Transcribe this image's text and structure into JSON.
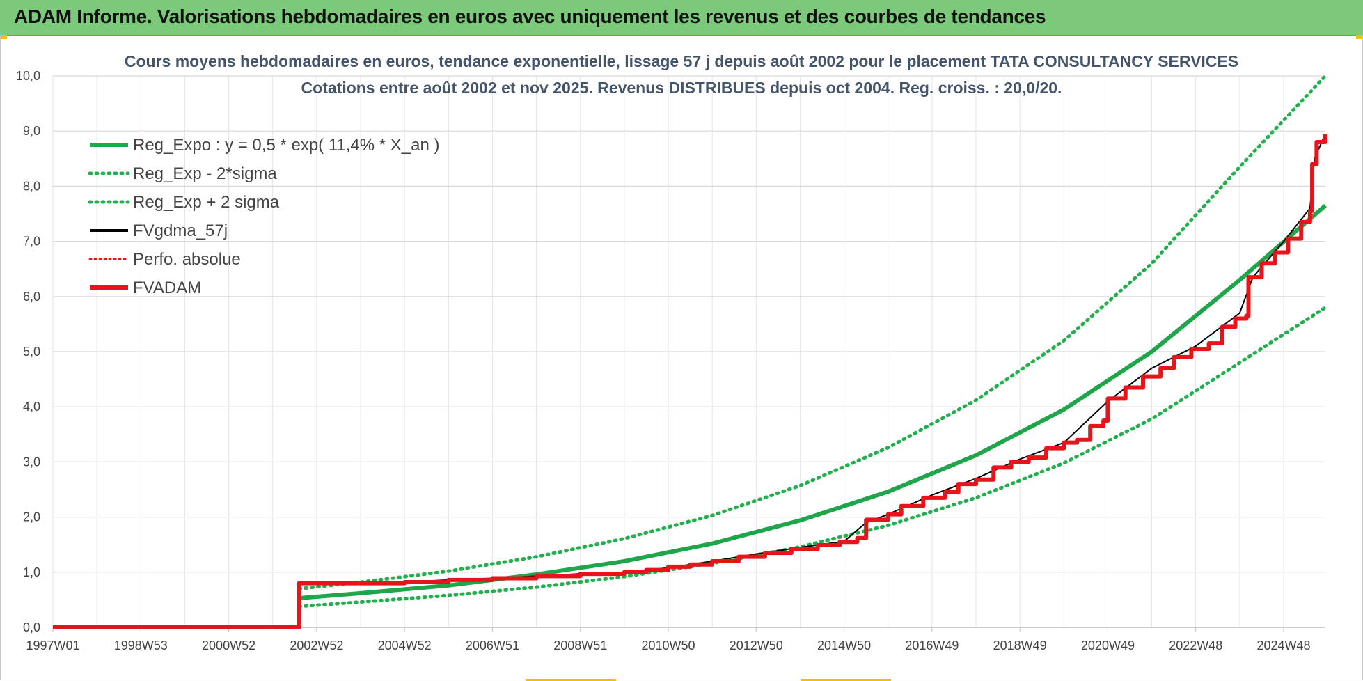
{
  "header": {
    "title": "ADAM Informe. Valorisations hebdomadaires en euros avec uniquement les revenus et des courbes de tendances"
  },
  "colors": {
    "header_bg": "#7dc97b",
    "reg_expo": "#1fa64a",
    "reg_band": "#22b04e",
    "fvgdma": "#000000",
    "perfo": "#e8141b",
    "fvadam": "#e8141b",
    "grid": "#d9d9d9"
  },
  "chart_data": {
    "type": "line",
    "title_line1": "Cours moyens hebdomadaires en euros, tendance exponentielle, lissage 57 j depuis août 2002 pour le placement TATA CONSULTANCY SERVICES",
    "title_line2": "Cotations entre août 2002 et nov 2025. Revenus DISTRIBUES depuis oct 2004. Reg. croiss. : 20,0/20.",
    "ylim": [
      0,
      10
    ],
    "xlim": [
      1997.0,
      2025.95
    ],
    "y_ticks": [
      "0,0",
      "1,0",
      "2,0",
      "3,0",
      "4,0",
      "5,0",
      "6,0",
      "7,0",
      "8,0",
      "9,0",
      "10,0"
    ],
    "x_ticks": [
      {
        "label": "1997W01",
        "x": 1997.0
      },
      {
        "label": "1998W53",
        "x": 1999.0
      },
      {
        "label": "2000W52",
        "x": 2001.0
      },
      {
        "label": "2002W52",
        "x": 2003.0
      },
      {
        "label": "2004W52",
        "x": 2005.0
      },
      {
        "label": "2006W51",
        "x": 2007.0
      },
      {
        "label": "2008W51",
        "x": 2009.0
      },
      {
        "label": "2010W50",
        "x": 2011.0
      },
      {
        "label": "2012W50",
        "x": 2013.0
      },
      {
        "label": "2014W50",
        "x": 2015.0
      },
      {
        "label": "2016W49",
        "x": 2017.0
      },
      {
        "label": "2018W49",
        "x": 2019.0
      },
      {
        "label": "2020W49",
        "x": 2021.0
      },
      {
        "label": "2022W48",
        "x": 2023.0
      },
      {
        "label": "2024W48",
        "x": 2025.0
      }
    ],
    "legend": [
      {
        "key": "reg_expo",
        "label": "Reg_Expo : y = 0,5 * exp( 11,4% *  X_an )",
        "style": "solid-thick",
        "color": "#1fa64a"
      },
      {
        "key": "reg_minus",
        "label": "Reg_Exp - 2*sigma",
        "style": "dotted",
        "color": "#22b04e"
      },
      {
        "key": "reg_plus",
        "label": "Reg_Exp + 2 sigma",
        "style": "dotted",
        "color": "#22b04e"
      },
      {
        "key": "fvgdma",
        "label": "FVgdma_57j",
        "style": "solid",
        "color": "#000000"
      },
      {
        "key": "perfo",
        "label": "Perfo. absolue",
        "style": "dotted-thin",
        "color": "#e8141b"
      },
      {
        "key": "fvadam",
        "label": "FVADAM",
        "style": "solid-thick",
        "color": "#e8141b"
      }
    ],
    "series": [
      {
        "name": "Reg_Expo",
        "x_start": 2002.6,
        "x_end": 2025.95,
        "points": [
          [
            2002.6,
            0.53
          ],
          [
            2004,
            0.62
          ],
          [
            2006,
            0.76
          ],
          [
            2008,
            0.96
          ],
          [
            2010,
            1.2
          ],
          [
            2012,
            1.52
          ],
          [
            2014,
            1.94
          ],
          [
            2016,
            2.46
          ],
          [
            2018,
            3.12
          ],
          [
            2020,
            3.95
          ],
          [
            2022,
            5.0
          ],
          [
            2024,
            6.3
          ],
          [
            2025.95,
            7.65
          ]
        ]
      },
      {
        "name": "Reg_Exp - 2*sigma",
        "points": [
          [
            2002.6,
            0.38
          ],
          [
            2004,
            0.46
          ],
          [
            2006,
            0.58
          ],
          [
            2008,
            0.73
          ],
          [
            2010,
            0.92
          ],
          [
            2012,
            1.16
          ],
          [
            2014,
            1.46
          ],
          [
            2016,
            1.85
          ],
          [
            2018,
            2.35
          ],
          [
            2020,
            2.98
          ],
          [
            2022,
            3.78
          ],
          [
            2024,
            4.8
          ],
          [
            2025.95,
            5.8
          ]
        ]
      },
      {
        "name": "Reg_Exp + 2 sigma",
        "points": [
          [
            2002.6,
            0.7
          ],
          [
            2004,
            0.82
          ],
          [
            2006,
            1.02
          ],
          [
            2008,
            1.28
          ],
          [
            2010,
            1.61
          ],
          [
            2012,
            2.03
          ],
          [
            2014,
            2.57
          ],
          [
            2016,
            3.26
          ],
          [
            2018,
            4.12
          ],
          [
            2020,
            5.2
          ],
          [
            2022,
            6.6
          ],
          [
            2024,
            8.35
          ],
          [
            2025.95,
            10.0
          ]
        ]
      },
      {
        "name": "FVADAM",
        "points": [
          [
            1997.0,
            0.0
          ],
          [
            2002.55,
            0.0
          ],
          [
            2002.6,
            0.8
          ],
          [
            2004,
            0.8
          ],
          [
            2005,
            0.82
          ],
          [
            2006,
            0.86
          ],
          [
            2007,
            0.89
          ],
          [
            2008,
            0.93
          ],
          [
            2009,
            0.97
          ],
          [
            2010,
            1.0
          ],
          [
            2010.5,
            1.04
          ],
          [
            2011,
            1.1
          ],
          [
            2011.5,
            1.14
          ],
          [
            2012,
            1.2
          ],
          [
            2012.6,
            1.28
          ],
          [
            2013.2,
            1.35
          ],
          [
            2013.8,
            1.42
          ],
          [
            2014.4,
            1.49
          ],
          [
            2014.9,
            1.55
          ],
          [
            2015.3,
            1.62
          ],
          [
            2015.5,
            1.95
          ],
          [
            2016,
            2.05
          ],
          [
            2016.3,
            2.2
          ],
          [
            2016.8,
            2.35
          ],
          [
            2017.3,
            2.45
          ],
          [
            2017.6,
            2.6
          ],
          [
            2018,
            2.68
          ],
          [
            2018.4,
            2.9
          ],
          [
            2018.8,
            3.0
          ],
          [
            2019.2,
            3.08
          ],
          [
            2019.6,
            3.25
          ],
          [
            2020,
            3.35
          ],
          [
            2020.3,
            3.4
          ],
          [
            2020.6,
            3.65
          ],
          [
            2020.9,
            3.75
          ],
          [
            2021.0,
            4.15
          ],
          [
            2021.4,
            4.35
          ],
          [
            2021.8,
            4.55
          ],
          [
            2022.2,
            4.7
          ],
          [
            2022.5,
            4.9
          ],
          [
            2022.9,
            5.05
          ],
          [
            2023.3,
            5.15
          ],
          [
            2023.6,
            5.45
          ],
          [
            2023.9,
            5.6
          ],
          [
            2024.15,
            5.65
          ],
          [
            2024.2,
            6.35
          ],
          [
            2024.5,
            6.6
          ],
          [
            2024.8,
            6.8
          ],
          [
            2025.1,
            7.05
          ],
          [
            2025.4,
            7.35
          ],
          [
            2025.6,
            7.55
          ],
          [
            2025.65,
            8.4
          ],
          [
            2025.75,
            8.8
          ],
          [
            2025.95,
            8.95
          ]
        ]
      },
      {
        "name": "FVgdma_57j",
        "points": [
          [
            2002.6,
            0.8
          ],
          [
            2004,
            0.8
          ],
          [
            2005,
            0.82
          ],
          [
            2006,
            0.86
          ],
          [
            2007,
            0.89
          ],
          [
            2008,
            0.93
          ],
          [
            2009,
            0.97
          ],
          [
            2010,
            1.0
          ],
          [
            2011,
            1.08
          ],
          [
            2012,
            1.2
          ],
          [
            2013,
            1.33
          ],
          [
            2014,
            1.45
          ],
          [
            2015,
            1.56
          ],
          [
            2015.5,
            1.9
          ],
          [
            2016,
            2.05
          ],
          [
            2017,
            2.4
          ],
          [
            2018,
            2.7
          ],
          [
            2019,
            3.05
          ],
          [
            2020,
            3.35
          ],
          [
            2021,
            4.1
          ],
          [
            2022,
            4.7
          ],
          [
            2023,
            5.1
          ],
          [
            2024,
            5.7
          ],
          [
            2024.3,
            6.35
          ],
          [
            2025,
            7.0
          ],
          [
            2025.6,
            7.6
          ],
          [
            2025.7,
            8.5
          ],
          [
            2025.95,
            8.95
          ]
        ]
      }
    ]
  }
}
